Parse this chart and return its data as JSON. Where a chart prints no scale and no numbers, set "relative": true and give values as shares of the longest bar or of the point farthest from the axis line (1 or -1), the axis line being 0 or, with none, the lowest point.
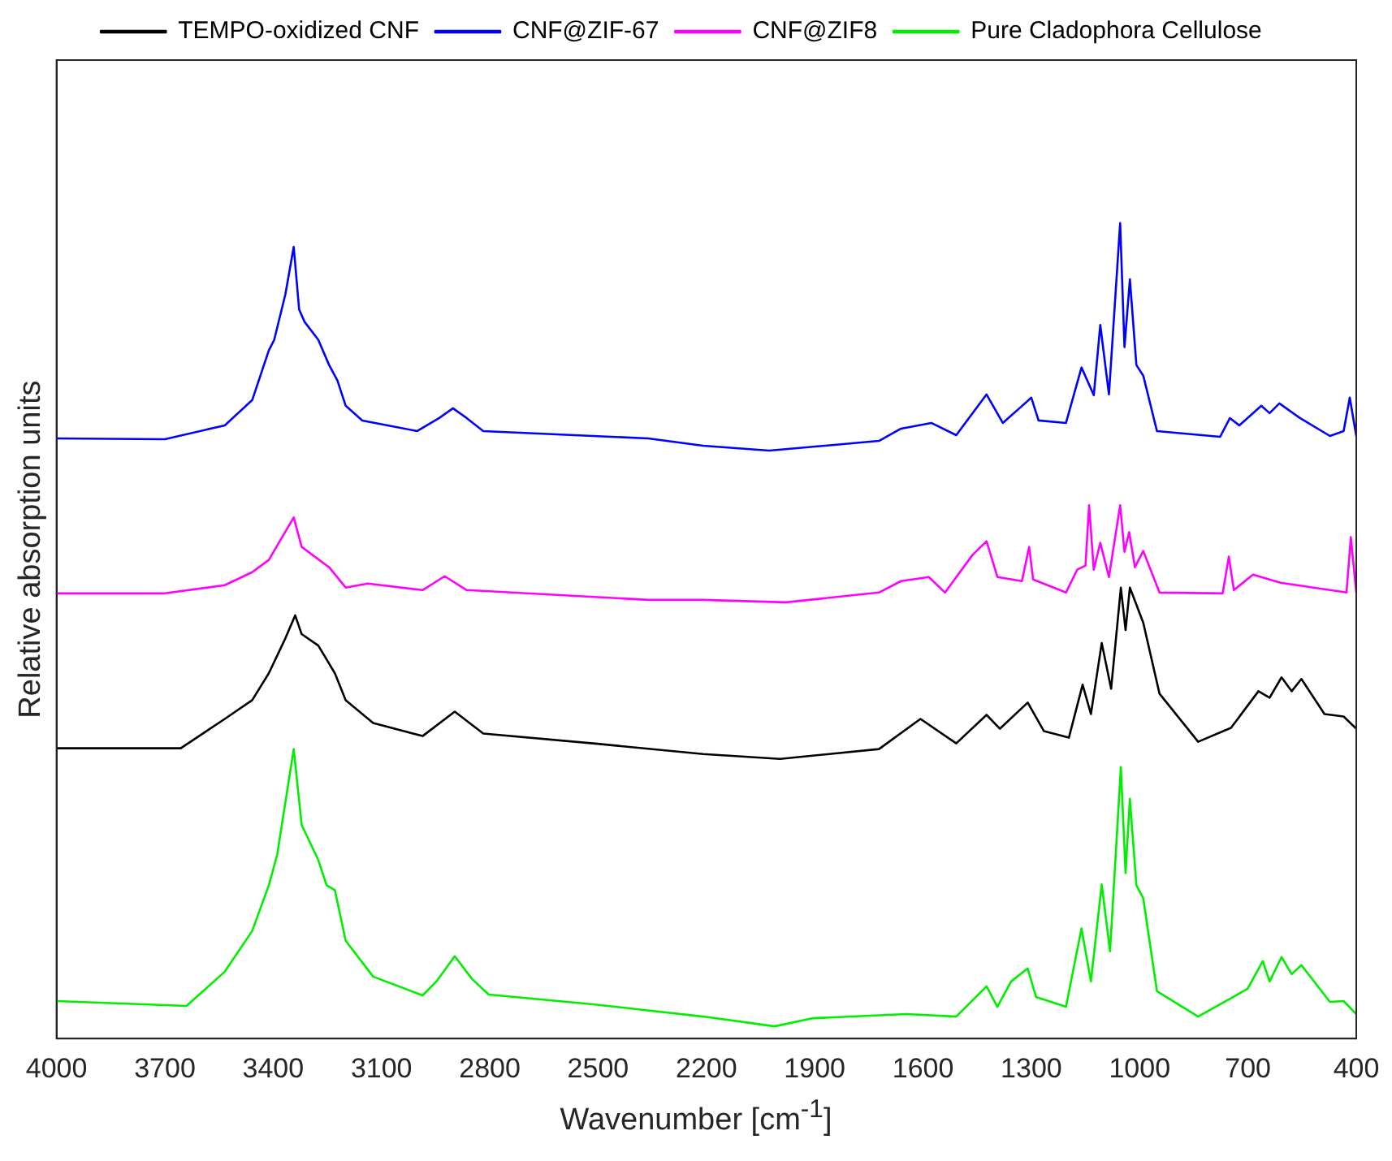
{
  "chart_data": {
    "type": "line",
    "xlabel": "Wavenumber [cm$^{-1}$]",
    "ylabel": "Relative absorption units",
    "relative": true,
    "xlim": [
      4000,
      400
    ],
    "xticks": [
      4000,
      3700,
      3400,
      3100,
      2800,
      2500,
      2200,
      1900,
      1600,
      1300,
      1000,
      700,
      400
    ],
    "grid": false,
    "legend": "top",
    "marker": "none",
    "line_style": "solid",
    "series": [
      {
        "name": "TEMPO-oxidized CNF",
        "color": "#000000",
        "x": [
          4000,
          3656,
          3534,
          3458,
          3412,
          3366,
          3339,
          3321,
          3275,
          3229,
          3199,
          3123,
          2986,
          2897,
          2818,
          2514,
          2209,
          1996,
          1722,
          1607,
          1508,
          1424,
          1387,
          1310,
          1265,
          1196,
          1158,
          1135,
          1105,
          1079,
          1052,
          1039,
          1027,
          990,
          945,
          838,
          747,
          671,
          640,
          607,
          579,
          552,
          488,
          435,
          400
        ],
        "values": [
          0.356,
          0.356,
          0.392,
          0.415,
          0.448,
          0.491,
          0.519,
          0.496,
          0.482,
          0.448,
          0.415,
          0.387,
          0.371,
          0.401,
          0.374,
          0.362,
          0.349,
          0.343,
          0.355,
          0.392,
          0.362,
          0.397,
          0.38,
          0.412,
          0.377,
          0.369,
          0.434,
          0.398,
          0.485,
          0.429,
          0.553,
          0.501,
          0.553,
          0.51,
          0.423,
          0.364,
          0.381,
          0.426,
          0.418,
          0.443,
          0.426,
          0.441,
          0.398,
          0.395,
          0.38
        ]
      },
      {
        "name": "CNF@ZIF-67",
        "color": "#0000ff",
        "x": [
          4000,
          3700,
          3534,
          3458,
          3412,
          3397,
          3366,
          3343,
          3328,
          3313,
          3275,
          3245,
          3222,
          3199,
          3153,
          3001,
          2940,
          2902,
          2864,
          2818,
          2361,
          2209,
          2026,
          1722,
          1661,
          1577,
          1508,
          1424,
          1379,
          1333,
          1300,
          1280,
          1204,
          1161,
          1127,
          1109,
          1085,
          1054,
          1042,
          1027,
          1009,
          990,
          952,
          777,
          750,
          724,
          663,
          640,
          613,
          556,
          473,
          435,
          418,
          400
        ],
        "values": [
          0.736,
          0.735,
          0.752,
          0.783,
          0.844,
          0.857,
          0.913,
          0.971,
          0.894,
          0.879,
          0.857,
          0.826,
          0.807,
          0.776,
          0.758,
          0.745,
          0.761,
          0.773,
          0.761,
          0.745,
          0.736,
          0.727,
          0.721,
          0.733,
          0.748,
          0.755,
          0.74,
          0.79,
          0.755,
          0.773,
          0.786,
          0.758,
          0.755,
          0.823,
          0.789,
          0.875,
          0.79,
          1,
          0.848,
          0.931,
          0.826,
          0.813,
          0.745,
          0.738,
          0.761,
          0.752,
          0.776,
          0.767,
          0.779,
          0.761,
          0.739,
          0.745,
          0.786,
          0.739
        ]
      },
      {
        "name": "CNF@ZIF8",
        "color": "#ff00ff",
        "x": [
          4000,
          3700,
          3534,
          3458,
          3412,
          3343,
          3321,
          3245,
          3199,
          3138,
          2986,
          2925,
          2864,
          2361,
          2209,
          1980,
          1722,
          1661,
          1584,
          1539,
          1463,
          1424,
          1394,
          1326,
          1306,
          1295,
          1204,
          1173,
          1150,
          1140,
          1127,
          1109,
          1085,
          1054,
          1042,
          1029,
          1013,
          990,
          945,
          770,
          753,
          739,
          686,
          610,
          427,
          415,
          400
        ],
        "values": [
          0.546,
          0.546,
          0.556,
          0.572,
          0.587,
          0.639,
          0.603,
          0.578,
          0.553,
          0.558,
          0.55,
          0.567,
          0.55,
          0.538,
          0.538,
          0.535,
          0.547,
          0.561,
          0.566,
          0.547,
          0.593,
          0.61,
          0.566,
          0.561,
          0.603,
          0.563,
          0.547,
          0.575,
          0.58,
          0.654,
          0.575,
          0.608,
          0.566,
          0.654,
          0.597,
          0.621,
          0.578,
          0.598,
          0.547,
          0.546,
          0.591,
          0.55,
          0.569,
          0.559,
          0.547,
          0.615,
          0.547
        ]
      },
      {
        "name": "Pure Cladophora Cellulose",
        "color": "#00ee00",
        "x": [
          4000,
          3640,
          3534,
          3458,
          3412,
          3389,
          3343,
          3321,
          3275,
          3252,
          3229,
          3199,
          3123,
          2986,
          2948,
          2897,
          2849,
          2803,
          2514,
          2209,
          2011,
          1904,
          1646,
          1508,
          1424,
          1394,
          1356,
          1310,
          1287,
          1204,
          1161,
          1135,
          1105,
          1082,
          1052,
          1039,
          1027,
          1009,
          990,
          952,
          838,
          701,
          659,
          640,
          607,
          579,
          552,
          473,
          435,
          400
        ],
        "values": [
          0.046,
          0.04,
          0.082,
          0.132,
          0.188,
          0.225,
          0.355,
          0.262,
          0.219,
          0.188,
          0.182,
          0.12,
          0.076,
          0.053,
          0.07,
          0.101,
          0.073,
          0.054,
          0.042,
          0.027,
          0.015,
          0.025,
          0.03,
          0.027,
          0.064,
          0.039,
          0.07,
          0.086,
          0.051,
          0.039,
          0.135,
          0.07,
          0.189,
          0.107,
          0.333,
          0.203,
          0.294,
          0.188,
          0.172,
          0.058,
          0.027,
          0.061,
          0.095,
          0.07,
          0.1,
          0.079,
          0.09,
          0.045,
          0.046,
          0.03
        ]
      }
    ]
  }
}
